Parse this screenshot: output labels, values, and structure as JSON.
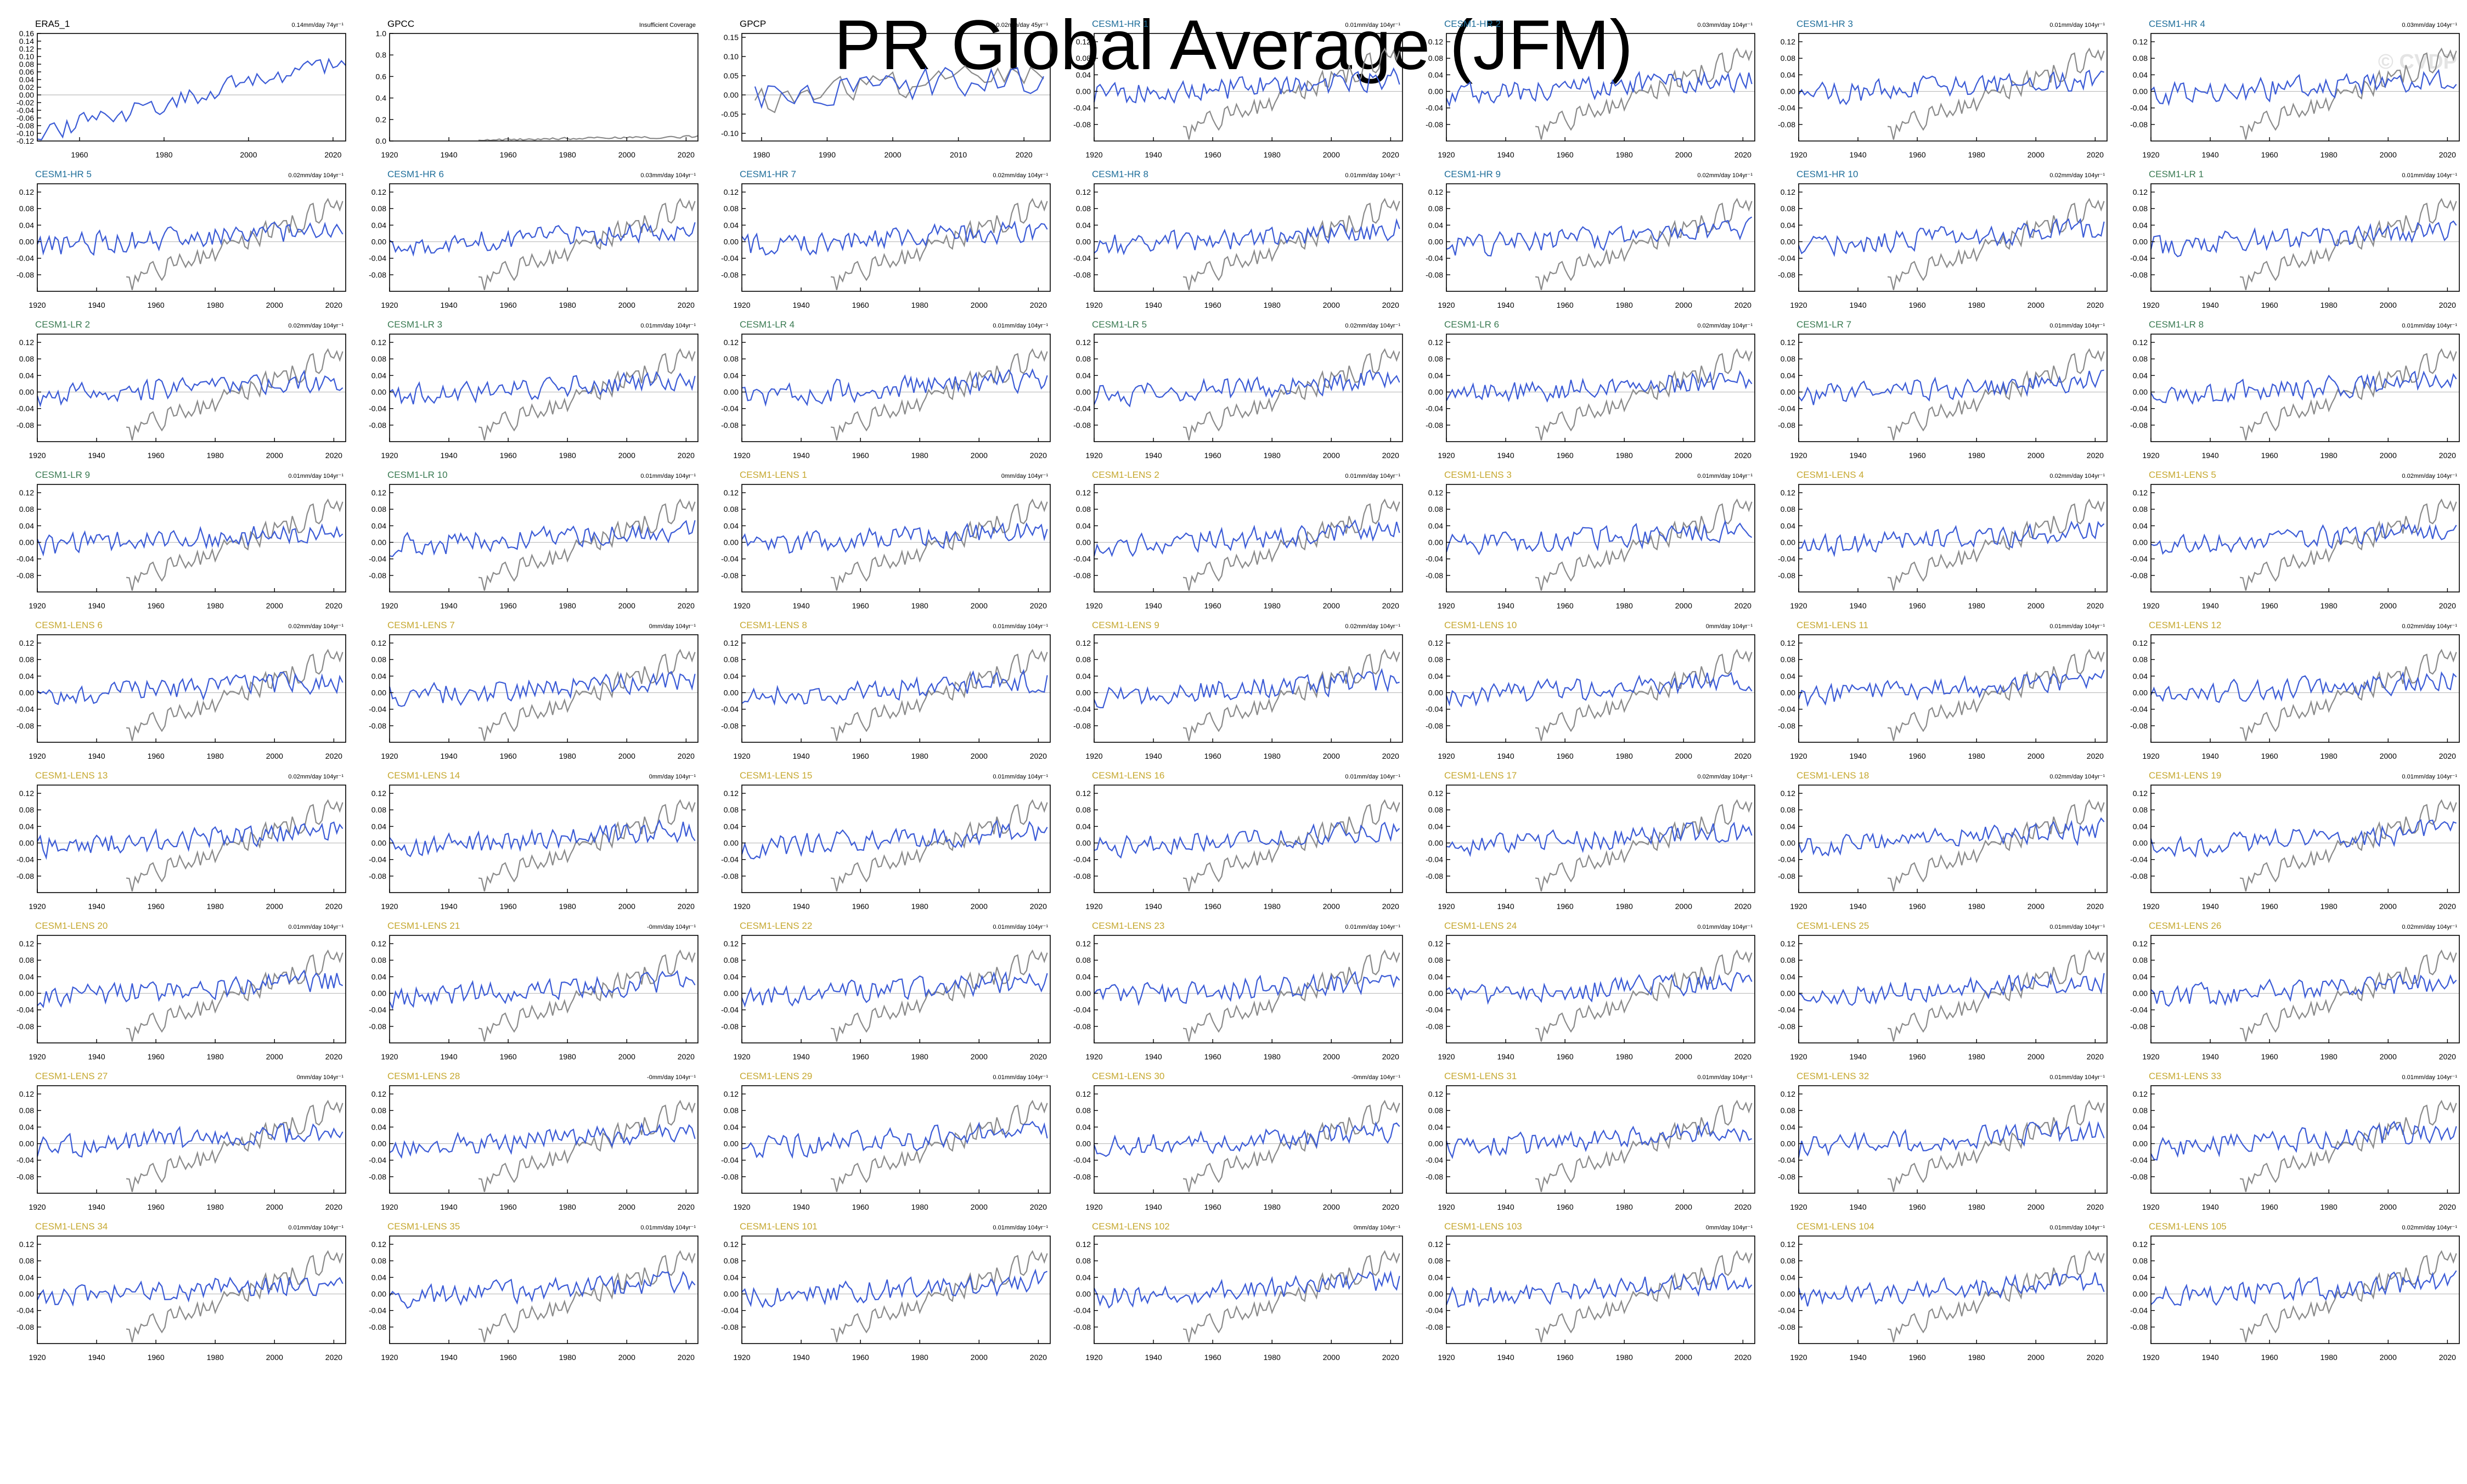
{
  "title": "PR Global Average (JFM)",
  "watermark": "© CVDP",
  "colors": {
    "obs": "#000000",
    "hr": "#1f6e9a",
    "lr": "#3a7a52",
    "lens": "#c6a830",
    "series": "#3b5bd6",
    "reference": "#8a8a8a",
    "zero_line": "#bbbbbb"
  },
  "chart_data": [
    {
      "type": "line",
      "title": "ERA5_1",
      "trend": "0.14mm/day 74yr⁻¹",
      "label_color": "obs",
      "xlim": [
        1950,
        2023
      ],
      "ylim": [
        -0.12,
        0.16
      ],
      "yticks": [
        "0.16",
        "0.14",
        "0.12",
        "0.10",
        "0.08",
        "0.06",
        "0.04",
        "0.02",
        "0.00",
        "-0.02",
        "-0.04",
        "-0.06",
        "-0.08",
        "-0.10",
        "-0.12"
      ],
      "xticks": [
        "1960",
        "1980",
        "2000",
        "2020"
      ],
      "series": [
        {
          "x_start": 1950,
          "x_end": 2023,
          "start": -0.1,
          "end": 0.09,
          "amp": 0.025,
          "seed": 11,
          "color": "series"
        }
      ]
    },
    {
      "type": "line",
      "title": "GPCC",
      "trend": "Insufficient Coverage",
      "label_color": "obs",
      "xlim": [
        1920,
        2024
      ],
      "ylim": [
        0.0,
        1.0
      ],
      "yticks": [
        "1.0",
        "0.8",
        "0.6",
        "0.4",
        "0.2",
        "0.0"
      ],
      "xticks": [
        "1920",
        "1940",
        "1960",
        "1980",
        "2000",
        "2020"
      ],
      "series": [
        {
          "x_start": 1950,
          "x_end": 2024,
          "start": 0.01,
          "end": 0.04,
          "amp": 0.01,
          "seed": 12,
          "color": "reference"
        }
      ]
    },
    {
      "type": "line",
      "title": "GPCP",
      "trend": "0.02mm/day 45yr⁻¹",
      "label_color": "obs",
      "xlim": [
        1977,
        2024
      ],
      "ylim": [
        -0.12,
        0.16
      ],
      "yticks": [
        "0.15",
        "0.10",
        "0.05",
        "0.00",
        "-0.05",
        "-0.10"
      ],
      "xticks": [
        "1980",
        "1990",
        "2000",
        "2010",
        "2020"
      ],
      "series": [
        {
          "x_start": 1979,
          "x_end": 2023,
          "start": -0.02,
          "end": 0.07,
          "amp": 0.035,
          "seed": 13,
          "color": "reference"
        },
        {
          "x_start": 1979,
          "x_end": 2023,
          "start": 0.0,
          "end": 0.04,
          "amp": 0.04,
          "seed": 14,
          "color": "series"
        }
      ]
    },
    {
      "title": "CESM1-HR 1",
      "trend": "0.01mm/day 104yr⁻¹",
      "label_color": "hr",
      "seed": 101
    },
    {
      "title": "CESM1-HR 2",
      "trend": "0.03mm/day 104yr⁻¹",
      "label_color": "hr",
      "seed": 102
    },
    {
      "title": "CESM1-HR 3",
      "trend": "0.01mm/day 104yr⁻¹",
      "label_color": "hr",
      "seed": 103
    },
    {
      "title": "CESM1-HR 4",
      "trend": "0.03mm/day 104yr⁻¹",
      "label_color": "hr",
      "seed": 104
    },
    {
      "title": "CESM1-HR 5",
      "trend": "0.02mm/day 104yr⁻¹",
      "label_color": "hr",
      "seed": 105
    },
    {
      "title": "CESM1-HR 6",
      "trend": "0.03mm/day 104yr⁻¹",
      "label_color": "hr",
      "seed": 106
    },
    {
      "title": "CESM1-HR 7",
      "trend": "0.02mm/day 104yr⁻¹",
      "label_color": "hr",
      "seed": 107
    },
    {
      "title": "CESM1-HR 8",
      "trend": "0.01mm/day 104yr⁻¹",
      "label_color": "hr",
      "seed": 108
    },
    {
      "title": "CESM1-HR 9",
      "trend": "0.02mm/day 104yr⁻¹",
      "label_color": "hr",
      "seed": 109
    },
    {
      "title": "CESM1-HR 10",
      "trend": "0.02mm/day 104yr⁻¹",
      "label_color": "hr",
      "seed": 110
    },
    {
      "title": "CESM1-LR 1",
      "trend": "0.01mm/day 104yr⁻¹",
      "label_color": "lr",
      "seed": 201
    },
    {
      "title": "CESM1-LR 2",
      "trend": "0.02mm/day 104yr⁻¹",
      "label_color": "lr",
      "seed": 202
    },
    {
      "title": "CESM1-LR 3",
      "trend": "0.01mm/day 104yr⁻¹",
      "label_color": "lr",
      "seed": 203
    },
    {
      "title": "CESM1-LR 4",
      "trend": "0.01mm/day 104yr⁻¹",
      "label_color": "lr",
      "seed": 204
    },
    {
      "title": "CESM1-LR 5",
      "trend": "0.02mm/day 104yr⁻¹",
      "label_color": "lr",
      "seed": 205
    },
    {
      "title": "CESM1-LR 6",
      "trend": "0.02mm/day 104yr⁻¹",
      "label_color": "lr",
      "seed": 206
    },
    {
      "title": "CESM1-LR 7",
      "trend": "0.01mm/day 104yr⁻¹",
      "label_color": "lr",
      "seed": 207
    },
    {
      "title": "CESM1-LR 8",
      "trend": "0.01mm/day 104yr⁻¹",
      "label_color": "lr",
      "seed": 208
    },
    {
      "title": "CESM1-LR 9",
      "trend": "0.01mm/day 104yr⁻¹",
      "label_color": "lr",
      "seed": 209
    },
    {
      "title": "CESM1-LR 10",
      "trend": "0.01mm/day 104yr⁻¹",
      "label_color": "lr",
      "seed": 210
    },
    {
      "title": "CESM1-LENS 1",
      "trend": "0mm/day 104yr⁻¹",
      "label_color": "lens",
      "seed": 301
    },
    {
      "title": "CESM1-LENS 2",
      "trend": "0.01mm/day 104yr⁻¹",
      "label_color": "lens",
      "seed": 302
    },
    {
      "title": "CESM1-LENS 3",
      "trend": "0.01mm/day 104yr⁻¹",
      "label_color": "lens",
      "seed": 303
    },
    {
      "title": "CESM1-LENS 4",
      "trend": "0.02mm/day 104yr⁻¹",
      "label_color": "lens",
      "seed": 304
    },
    {
      "title": "CESM1-LENS 5",
      "trend": "0.02mm/day 104yr⁻¹",
      "label_color": "lens",
      "seed": 305
    },
    {
      "title": "CESM1-LENS 6",
      "trend": "0.02mm/day 104yr⁻¹",
      "label_color": "lens",
      "seed": 306
    },
    {
      "title": "CESM1-LENS 7",
      "trend": "0mm/day 104yr⁻¹",
      "label_color": "lens",
      "seed": 307
    },
    {
      "title": "CESM1-LENS 8",
      "trend": "0.01mm/day 104yr⁻¹",
      "label_color": "lens",
      "seed": 308
    },
    {
      "title": "CESM1-LENS 9",
      "trend": "0.02mm/day 104yr⁻¹",
      "label_color": "lens",
      "seed": 309
    },
    {
      "title": "CESM1-LENS 10",
      "trend": "0mm/day 104yr⁻¹",
      "label_color": "lens",
      "seed": 310
    },
    {
      "title": "CESM1-LENS 11",
      "trend": "0.01mm/day 104yr⁻¹",
      "label_color": "lens",
      "seed": 311
    },
    {
      "title": "CESM1-LENS 12",
      "trend": "0.02mm/day 104yr⁻¹",
      "label_color": "lens",
      "seed": 312
    },
    {
      "title": "CESM1-LENS 13",
      "trend": "0.02mm/day 104yr⁻¹",
      "label_color": "lens",
      "seed": 313
    },
    {
      "title": "CESM1-LENS 14",
      "trend": "0mm/day 104yr⁻¹",
      "label_color": "lens",
      "seed": 314
    },
    {
      "title": "CESM1-LENS 15",
      "trend": "0.01mm/day 104yr⁻¹",
      "label_color": "lens",
      "seed": 315
    },
    {
      "title": "CESM1-LENS 16",
      "trend": "0.01mm/day 104yr⁻¹",
      "label_color": "lens",
      "seed": 316
    },
    {
      "title": "CESM1-LENS 17",
      "trend": "0.02mm/day 104yr⁻¹",
      "label_color": "lens",
      "seed": 317
    },
    {
      "title": "CESM1-LENS 18",
      "trend": "0.02mm/day 104yr⁻¹",
      "label_color": "lens",
      "seed": 318
    },
    {
      "title": "CESM1-LENS 19",
      "trend": "0.01mm/day 104yr⁻¹",
      "label_color": "lens",
      "seed": 319
    },
    {
      "title": "CESM1-LENS 20",
      "trend": "0.01mm/day 104yr⁻¹",
      "label_color": "lens",
      "seed": 320
    },
    {
      "title": "CESM1-LENS 21",
      "trend": "-0mm/day 104yr⁻¹",
      "label_color": "lens",
      "seed": 321
    },
    {
      "title": "CESM1-LENS 22",
      "trend": "0.01mm/day 104yr⁻¹",
      "label_color": "lens",
      "seed": 322
    },
    {
      "title": "CESM1-LENS 23",
      "trend": "0.01mm/day 104yr⁻¹",
      "label_color": "lens",
      "seed": 323
    },
    {
      "title": "CESM1-LENS 24",
      "trend": "0.01mm/day 104yr⁻¹",
      "label_color": "lens",
      "seed": 324
    },
    {
      "title": "CESM1-LENS 25",
      "trend": "0.01mm/day 104yr⁻¹",
      "label_color": "lens",
      "seed": 325
    },
    {
      "title": "CESM1-LENS 26",
      "trend": "0.02mm/day 104yr⁻¹",
      "label_color": "lens",
      "seed": 326
    },
    {
      "title": "CESM1-LENS 27",
      "trend": "0mm/day 104yr⁻¹",
      "label_color": "lens",
      "seed": 327
    },
    {
      "title": "CESM1-LENS 28",
      "trend": "-0mm/day 104yr⁻¹",
      "label_color": "lens",
      "seed": 328
    },
    {
      "title": "CESM1-LENS 29",
      "trend": "0.01mm/day 104yr⁻¹",
      "label_color": "lens",
      "seed": 329
    },
    {
      "title": "CESM1-LENS 30",
      "trend": "-0mm/day 104yr⁻¹",
      "label_color": "lens",
      "seed": 330
    },
    {
      "title": "CESM1-LENS 31",
      "trend": "0.01mm/day 104yr⁻¹",
      "label_color": "lens",
      "seed": 331
    },
    {
      "title": "CESM1-LENS 32",
      "trend": "0.01mm/day 104yr⁻¹",
      "label_color": "lens",
      "seed": 332
    },
    {
      "title": "CESM1-LENS 33",
      "trend": "0.01mm/day 104yr⁻¹",
      "label_color": "lens",
      "seed": 333
    },
    {
      "title": "CESM1-LENS 34",
      "trend": "0.01mm/day 104yr⁻¹",
      "label_color": "lens",
      "seed": 334
    },
    {
      "title": "CESM1-LENS 35",
      "trend": "0.01mm/day 104yr⁻¹",
      "label_color": "lens",
      "seed": 335
    },
    {
      "title": "CESM1-LENS 101",
      "trend": "0.01mm/day 104yr⁻¹",
      "label_color": "lens",
      "seed": 336
    },
    {
      "title": "CESM1-LENS 102",
      "trend": "0mm/day 104yr⁻¹",
      "label_color": "lens",
      "seed": 337
    },
    {
      "title": "CESM1-LENS 103",
      "trend": "0mm/day 104yr⁻¹",
      "label_color": "lens",
      "seed": 338
    },
    {
      "title": "CESM1-LENS 104",
      "trend": "0.01mm/day 104yr⁻¹",
      "label_color": "lens",
      "seed": 339
    },
    {
      "title": "CESM1-LENS 105",
      "trend": "0.02mm/day 104yr⁻¹",
      "label_color": "lens",
      "seed": 340
    }
  ],
  "model_panel_defaults": {
    "type": "line",
    "xlim": [
      1920,
      2024
    ],
    "ylim": [
      -0.12,
      0.14
    ],
    "yticks": [
      "0.12",
      "0.08",
      "0.04",
      "0.00",
      "-0.04",
      "-0.08"
    ],
    "xticks": [
      "1920",
      "1940",
      "1960",
      "1980",
      "2000",
      "2020"
    ],
    "reference": {
      "x_start": 1950,
      "x_end": 2023,
      "start": -0.1,
      "end": 0.09,
      "amp": 0.025
    },
    "model": {
      "x_start": 1920,
      "x_end": 2023,
      "start": -0.01,
      "end": 0.03,
      "amp": 0.025
    }
  }
}
